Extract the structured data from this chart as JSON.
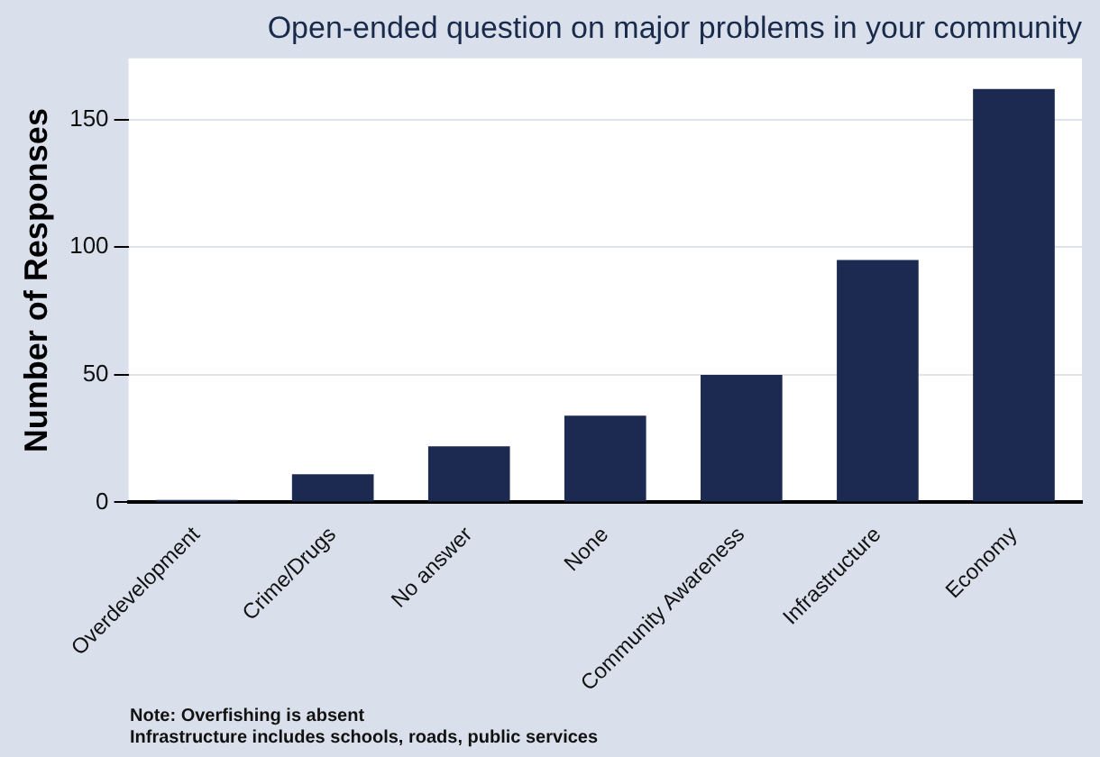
{
  "chart_data": {
    "type": "bar",
    "title": "Open-ended question on major problems in your community",
    "ylabel": "Number of Responses",
    "categories": [
      "Overdevelopment",
      "Crime/Drugs",
      "No answer",
      "None",
      "Community Awareness",
      "Infrastructure",
      "Economy"
    ],
    "values": [
      1,
      11,
      22,
      34,
      50,
      95,
      162
    ],
    "color": "#1c2951",
    "ylim": [
      0,
      174
    ],
    "yticks": [
      0,
      50,
      100,
      150
    ],
    "grid": "y",
    "annotations": [
      "Note: Overfishing is absent",
      "Infrastructure includes schools, roads, public services"
    ]
  }
}
